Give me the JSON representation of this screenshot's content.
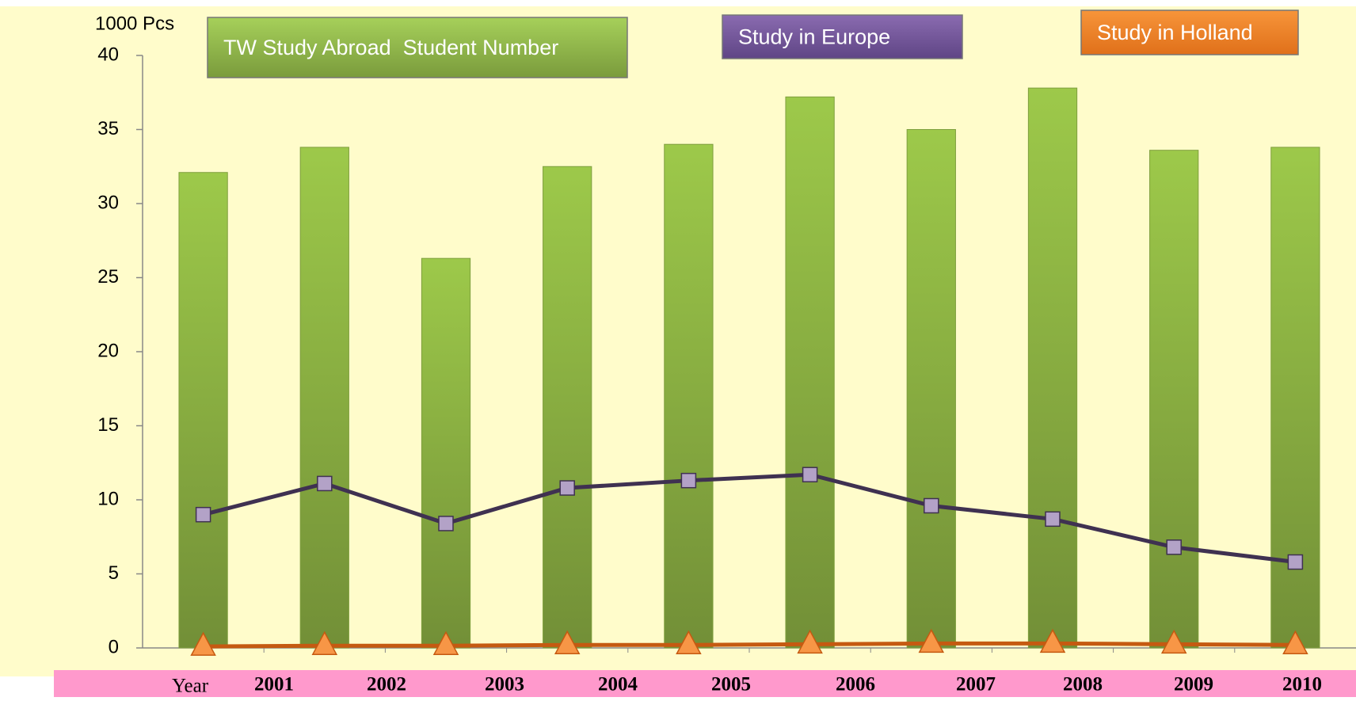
{
  "chart_data": {
    "type": "bar-line",
    "y_label": "1000 Pcs",
    "x_label": "Year",
    "categories": [
      "2001",
      "2002",
      "2003",
      "2004",
      "2005",
      "2006",
      "2007",
      "2008",
      "2009",
      "2010"
    ],
    "series": [
      {
        "name": "TW Study Abroad  Student Number",
        "type": "bar",
        "color": "#8db543",
        "values": [
          32.1,
          33.8,
          26.3,
          32.5,
          34.0,
          37.2,
          35.0,
          37.8,
          33.6,
          33.8
        ]
      },
      {
        "name": "Study in Europe",
        "type": "line",
        "color": "#3f3151",
        "marker": "square",
        "marker_color": "#b3a2c7",
        "values": [
          9.0,
          11.1,
          8.4,
          10.8,
          11.3,
          11.7,
          9.6,
          8.7,
          6.8,
          5.8
        ]
      },
      {
        "name": "Study in Holland",
        "type": "line",
        "color": "#c55a11",
        "marker": "triangle",
        "marker_color": "#f79646",
        "values": [
          0.1,
          0.15,
          0.15,
          0.2,
          0.2,
          0.25,
          0.3,
          0.3,
          0.25,
          0.2
        ]
      }
    ],
    "ylim": [
      0,
      40
    ],
    "yticks": [
      0,
      5,
      10,
      15,
      20,
      25,
      30,
      35,
      40
    ],
    "grid": false
  }
}
